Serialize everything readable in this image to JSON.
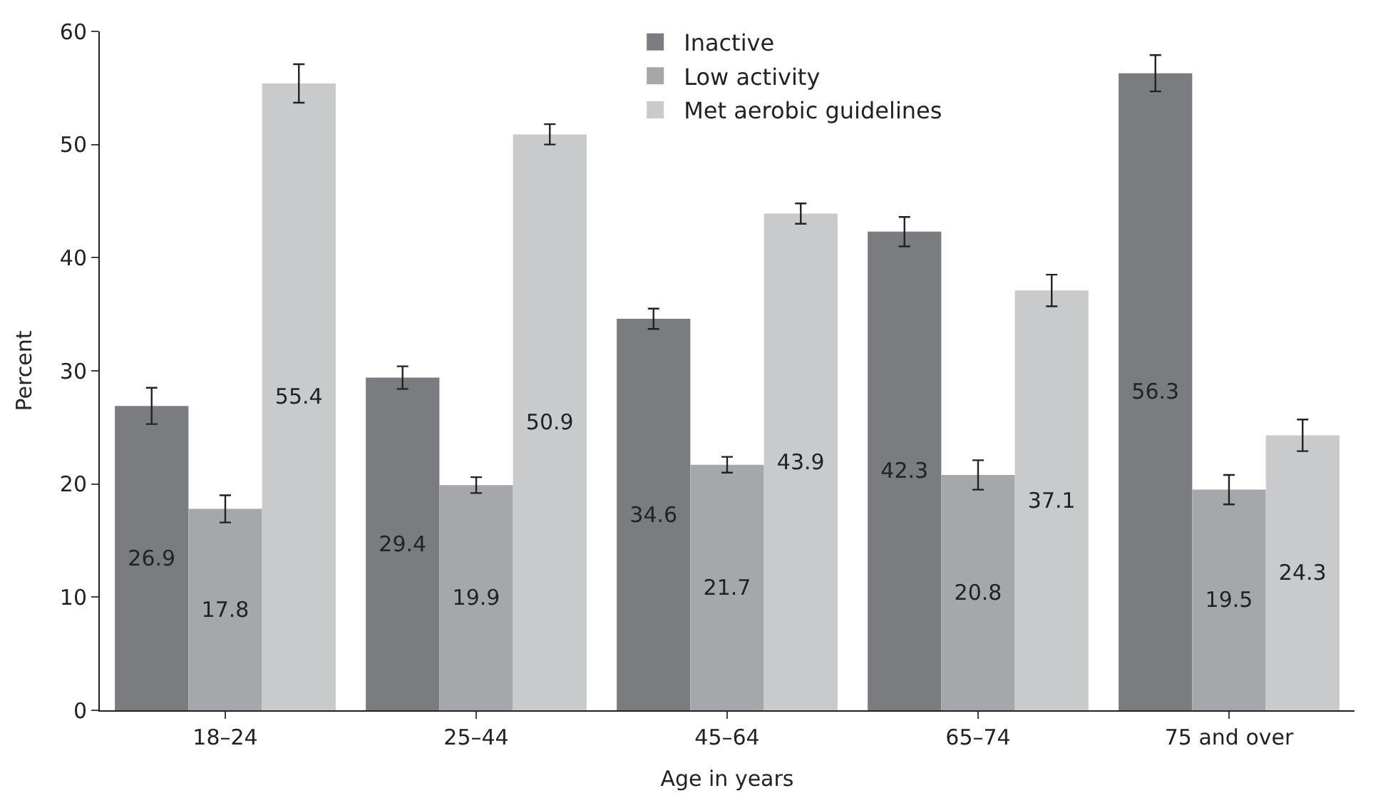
{
  "chart_data": {
    "type": "bar",
    "xlabel": "Age in years",
    "ylabel": "Percent",
    "categories": [
      "18–24",
      "25–44",
      "45–64",
      "65–74",
      "75 and over"
    ],
    "series": [
      {
        "name": "Inactive",
        "color": "#7b7c80",
        "values": [
          26.9,
          29.4,
          34.6,
          42.3,
          56.3
        ],
        "errors": [
          1.6,
          1.0,
          0.9,
          1.3,
          1.6
        ]
      },
      {
        "name": "Low activity",
        "color": "#a6a7aa",
        "values": [
          17.8,
          19.9,
          21.7,
          20.8,
          19.5
        ],
        "errors": [
          1.2,
          0.7,
          0.7,
          1.3,
          1.3
        ]
      },
      {
        "name": "Met aerobic guidelines",
        "color": "#c9cacc",
        "values": [
          55.4,
          50.9,
          43.9,
          37.1,
          24.3
        ],
        "errors": [
          1.7,
          0.9,
          0.9,
          1.4,
          1.4
        ]
      }
    ],
    "ylim": [
      0,
      60
    ],
    "yticks": [
      0,
      10,
      20,
      30,
      40,
      50,
      60
    ],
    "data_labels": true,
    "legend": "top"
  }
}
